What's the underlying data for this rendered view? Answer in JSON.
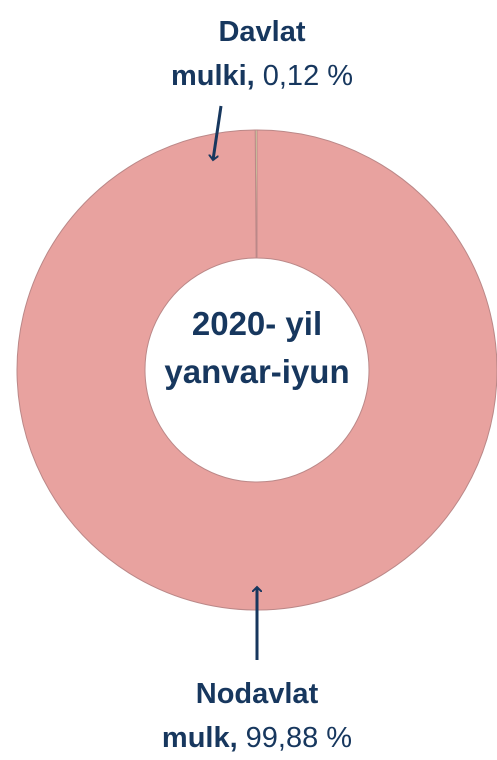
{
  "chart_data": {
    "type": "donut",
    "categories": [
      "Davlat mulki,",
      "Nodavlat mulk,"
    ],
    "values": [
      0.12,
      99.88
    ],
    "value_labels": [
      "0,12 %",
      "99,88 %"
    ],
    "colors": [
      "#d5e8a7",
      "#e8a29f"
    ],
    "center_label": "2020- yil yanvar-iyun"
  }
}
